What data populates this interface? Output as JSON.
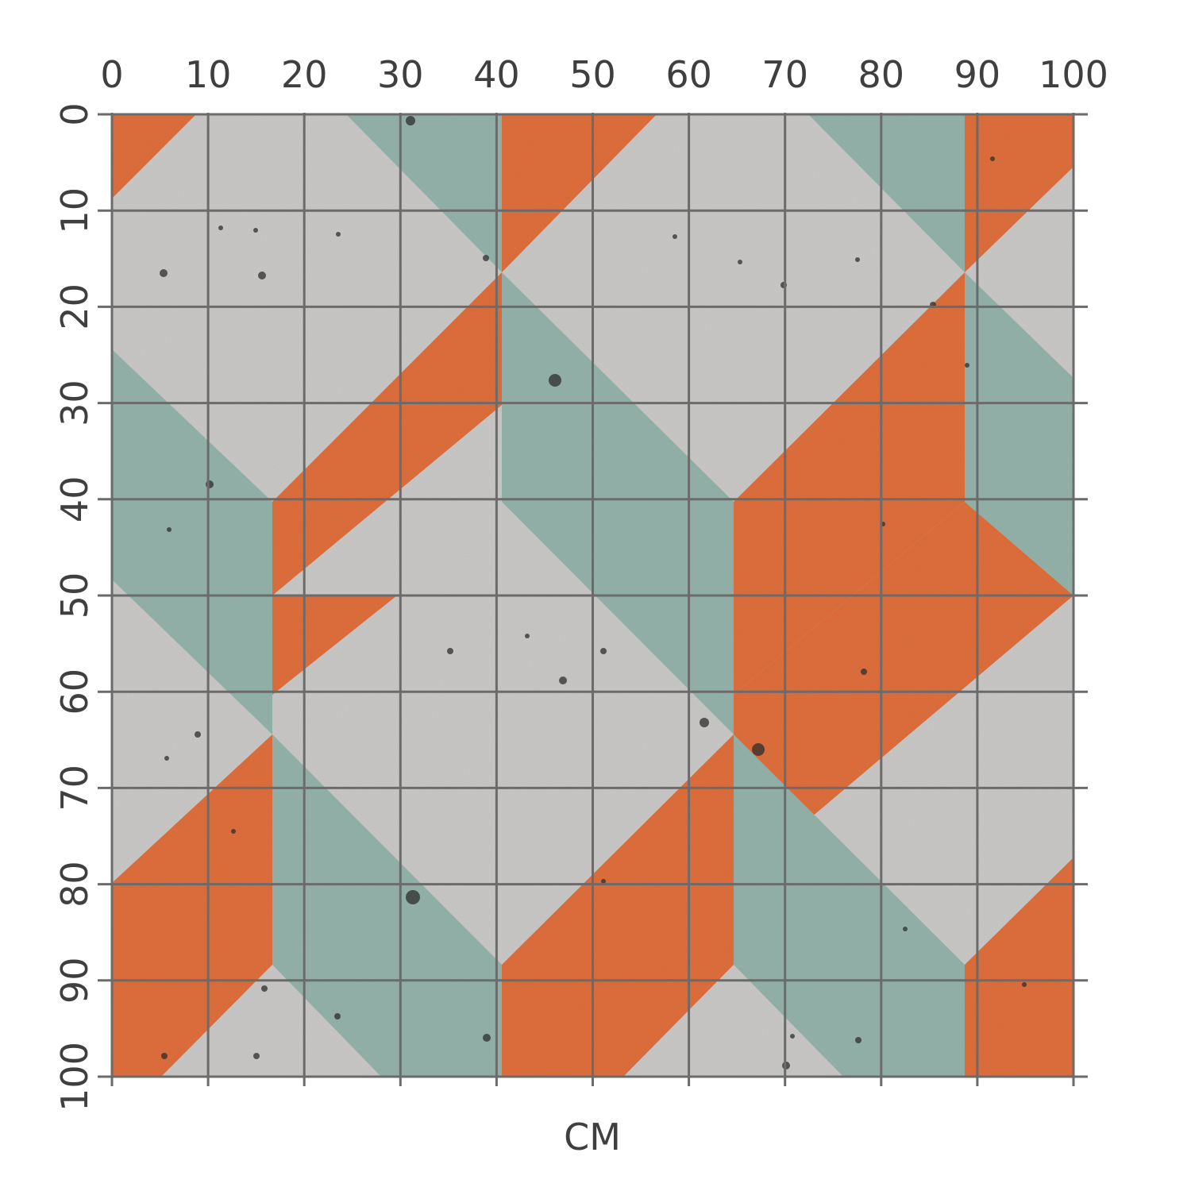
{
  "ruler": {
    "unit_label": "CM",
    "x_ticks": [
      "0",
      "10",
      "20",
      "30",
      "40",
      "50",
      "60",
      "70",
      "80",
      "90",
      "100"
    ],
    "y_ticks": [
      "0",
      "10",
      "20",
      "30",
      "40",
      "50",
      "60",
      "70",
      "80",
      "90",
      "100"
    ],
    "min": 0,
    "max": 100,
    "tick_step": 10
  },
  "pattern": {
    "colors": {
      "concrete": "#c9c8c6",
      "orange": "#e0652e",
      "teal": "#8eb0a6",
      "grid_line": "#6b6b6b",
      "label": "#3f3f3f"
    }
  }
}
